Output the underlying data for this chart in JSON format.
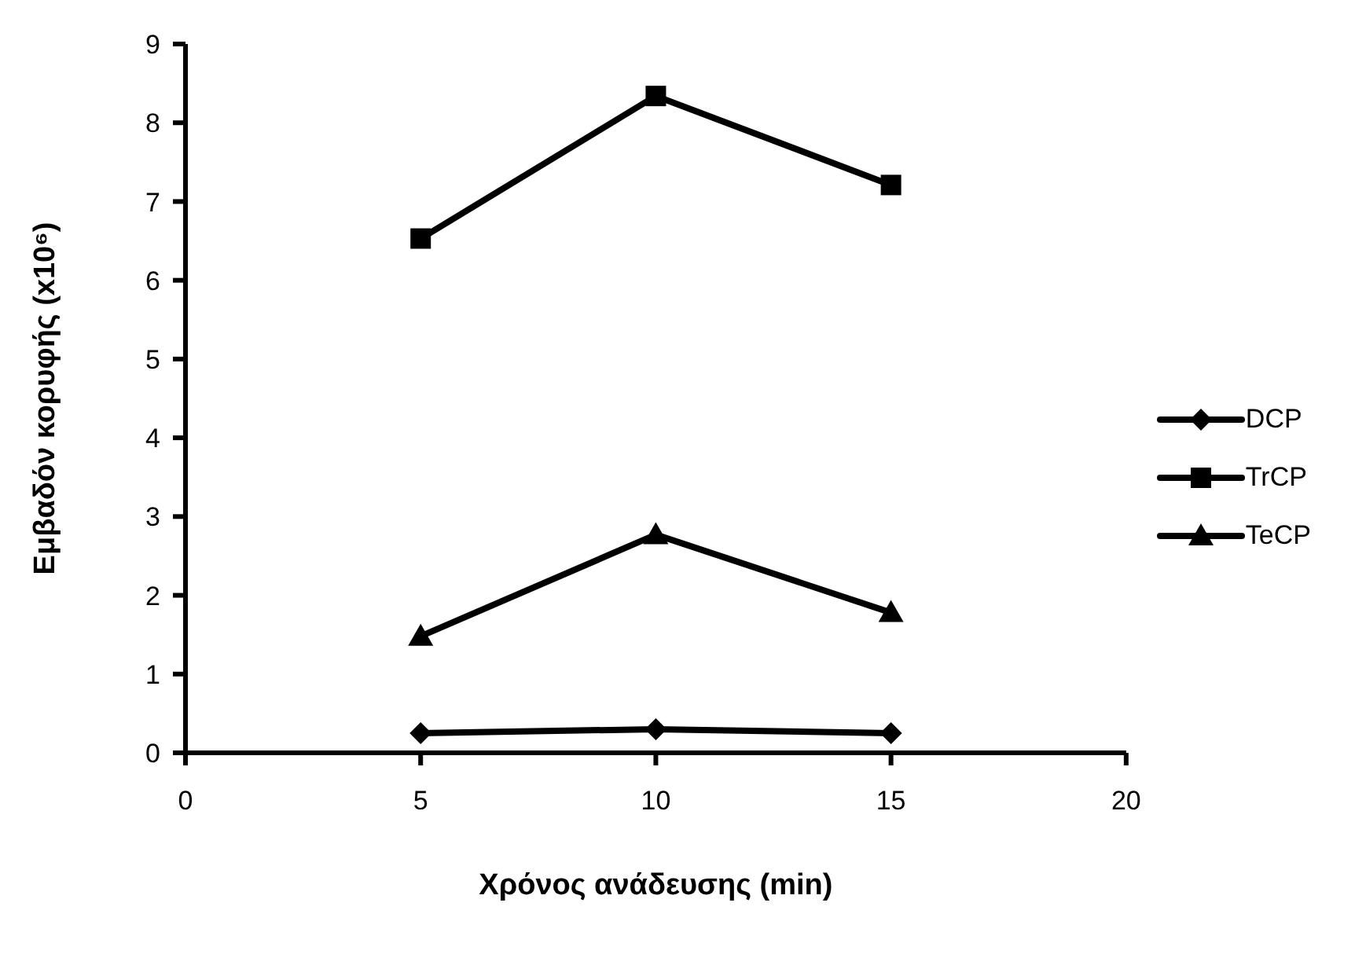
{
  "chart_data": {
    "type": "line",
    "xlabel": "Χρόνος ανάδευσης (min)",
    "ylabel": "Εμβαδόν κορυφής (x10⁶)",
    "x": [
      5,
      10,
      15
    ],
    "series": [
      {
        "name": "DCP",
        "color": "#000000",
        "marker": "diamond",
        "values": [
          0.25,
          0.3,
          0.25
        ]
      },
      {
        "name": "TrCP",
        "color": "#000000",
        "marker": "square",
        "values": [
          6.53,
          8.34,
          7.21
        ]
      },
      {
        "name": "TeCP",
        "color": "#000000",
        "marker": "triangle",
        "values": [
          1.48,
          2.77,
          1.78
        ]
      }
    ],
    "xlim": [
      0,
      20
    ],
    "xticks": [
      0,
      5,
      10,
      15,
      20
    ],
    "ylim": [
      0,
      9
    ],
    "yticks": [
      0,
      1,
      2,
      3,
      4,
      5,
      6,
      7,
      8,
      9
    ],
    "grid": false,
    "legend": "right",
    "line_style": "solid"
  }
}
